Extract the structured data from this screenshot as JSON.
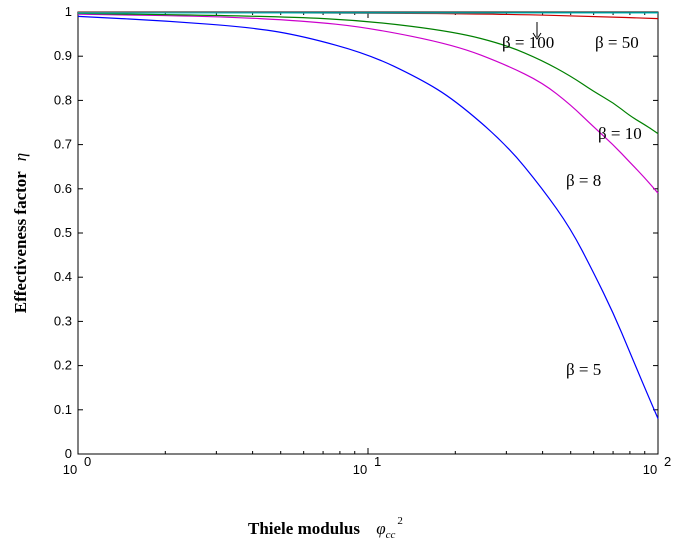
{
  "chart_data": {
    "type": "line",
    "title": "",
    "xlabel": "Thiele modulus",
    "xlabel_symbol": "φcc",
    "xlabel_sub": "cc",
    "xlabel_sup": "2",
    "ylabel": "Effectiveness factor",
    "ylabel_symbol": "η",
    "xscale": "log",
    "xlim": [
      1,
      100
    ],
    "ylim": [
      0,
      1
    ],
    "grid": false,
    "x_ticks": [
      {
        "value": 1,
        "base": "10",
        "exp": "0"
      },
      {
        "value": 10,
        "base": "10",
        "exp": "1"
      },
      {
        "value": 100,
        "base": "10",
        "exp": "2"
      }
    ],
    "y_ticks": [
      "0",
      "0.1",
      "0.2",
      "0.3",
      "0.4",
      "0.5",
      "0.6",
      "0.7",
      "0.8",
      "0.9",
      "1"
    ],
    "series": [
      {
        "name": "β = 5",
        "color": "#0000ff",
        "points": [
          [
            1,
            0.99
          ],
          [
            2,
            0.98
          ],
          [
            4,
            0.965
          ],
          [
            6,
            0.945
          ],
          [
            10,
            0.905
          ],
          [
            15,
            0.85
          ],
          [
            20,
            0.8
          ],
          [
            30,
            0.7
          ],
          [
            40,
            0.6
          ],
          [
            50,
            0.51
          ],
          [
            60,
            0.41
          ],
          [
            70,
            0.32
          ],
          [
            80,
            0.23
          ],
          [
            90,
            0.15
          ],
          [
            100,
            0.08
          ]
        ]
      },
      {
        "name": "β = 8",
        "color": "#cc00cc",
        "points": [
          [
            1,
            0.995
          ],
          [
            3,
            0.99
          ],
          [
            6,
            0.98
          ],
          [
            10,
            0.965
          ],
          [
            20,
            0.925
          ],
          [
            30,
            0.88
          ],
          [
            40,
            0.84
          ],
          [
            50,
            0.79
          ],
          [
            60,
            0.74
          ],
          [
            70,
            0.7
          ],
          [
            80,
            0.66
          ],
          [
            90,
            0.625
          ],
          [
            100,
            0.59
          ]
        ]
      },
      {
        "name": "β = 10",
        "color": "#008000",
        "points": [
          [
            1,
            0.997
          ],
          [
            5,
            0.99
          ],
          [
            10,
            0.98
          ],
          [
            20,
            0.955
          ],
          [
            30,
            0.925
          ],
          [
            40,
            0.89
          ],
          [
            50,
            0.855
          ],
          [
            60,
            0.82
          ],
          [
            70,
            0.795
          ],
          [
            80,
            0.765
          ],
          [
            90,
            0.745
          ],
          [
            100,
            0.725
          ]
        ]
      },
      {
        "name": "β = 50",
        "color": "#cc0000",
        "points": [
          [
            1,
            0.999
          ],
          [
            10,
            0.998
          ],
          [
            30,
            0.995
          ],
          [
            60,
            0.99
          ],
          [
            100,
            0.985
          ]
        ]
      },
      {
        "name": "β = 100",
        "color": "#00bfbf",
        "points": [
          [
            1,
            0.998
          ],
          [
            10,
            0.998
          ],
          [
            50,
            0.998
          ],
          [
            100,
            0.998
          ]
        ]
      }
    ]
  }
}
